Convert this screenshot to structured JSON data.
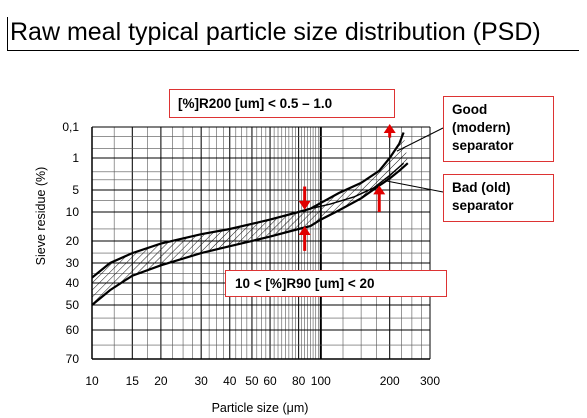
{
  "slide": {
    "title": "Raw meal typical particle size distribution (PSD)"
  },
  "callouts": {
    "r200": "[%]R200 [um] < 0.5 – 1.0",
    "good": [
      "Good",
      "(modern)",
      "separator"
    ],
    "bad": [
      "Bad (old)",
      "separator"
    ],
    "r90": "10 < [%]R90 [um] < 20"
  },
  "chart_data": {
    "type": "area",
    "xlabel": "Particle size (μm)",
    "ylabel": "Sieve residue (%)",
    "x_scale": "log",
    "y_scale": "probability",
    "xlim": [
      10,
      300
    ],
    "ylim": [
      0.1,
      70
    ],
    "x_ticks": [
      10,
      15,
      20,
      30,
      40,
      50,
      60,
      80,
      100,
      200,
      300
    ],
    "x_tick_labels": [
      "10",
      "15",
      "20",
      "30",
      "40",
      "50",
      "60",
      "80",
      "100",
      "200",
      "300"
    ],
    "y_ticks": [
      0.1,
      1,
      5,
      10,
      20,
      30,
      40,
      50,
      60,
      70
    ],
    "y_tick_labels": [
      "0,1",
      "1",
      "5",
      "10",
      "20",
      "30",
      "40",
      "50",
      "60",
      "70"
    ],
    "grid": true,
    "series": [
      {
        "points": [
          [
            10,
            37
          ],
          [
            12,
            30
          ],
          [
            15,
            25
          ],
          [
            20,
            21
          ],
          [
            30,
            17
          ],
          [
            40,
            15
          ],
          [
            60,
            12
          ],
          [
            80,
            10
          ],
          [
            90,
            9
          ],
          [
            100,
            7.5
          ],
          [
            120,
            5.5
          ],
          [
            150,
            3.5
          ],
          [
            180,
            1.9
          ],
          [
            200,
            1.0
          ],
          [
            220,
            0.35
          ],
          [
            230,
            0.15
          ]
        ]
      },
      {
        "points": [
          [
            10,
            50
          ],
          [
            12,
            43
          ],
          [
            15,
            36
          ],
          [
            20,
            31
          ],
          [
            30,
            25
          ],
          [
            40,
            22
          ],
          [
            60,
            18
          ],
          [
            80,
            15
          ],
          [
            90,
            14
          ],
          [
            100,
            12
          ],
          [
            120,
            9.5
          ],
          [
            150,
            6.5
          ],
          [
            180,
            4
          ],
          [
            200,
            2.8
          ],
          [
            220,
            1.9
          ],
          [
            240,
            1.3
          ]
        ]
      },
      {
        "points": [
          [
            90,
            9.0
          ],
          [
            110,
            7.8
          ],
          [
            140,
            6.2
          ],
          [
            170,
            4.5
          ],
          [
            200,
            2.4
          ],
          [
            230,
            1.3
          ]
        ]
      }
    ],
    "arrows": [
      {
        "x": 200,
        "y_from": 0.22,
        "y_to": 0.1,
        "direction": "up"
      },
      {
        "x": 85,
        "y_from": 4.2,
        "y_to": 8.5,
        "direction": "down"
      },
      {
        "x": 85,
        "y_from": 24,
        "y_to": 15,
        "direction": "up"
      },
      {
        "x": 180,
        "y_from": 10,
        "y_to": 4.6,
        "direction": "up"
      }
    ]
  }
}
